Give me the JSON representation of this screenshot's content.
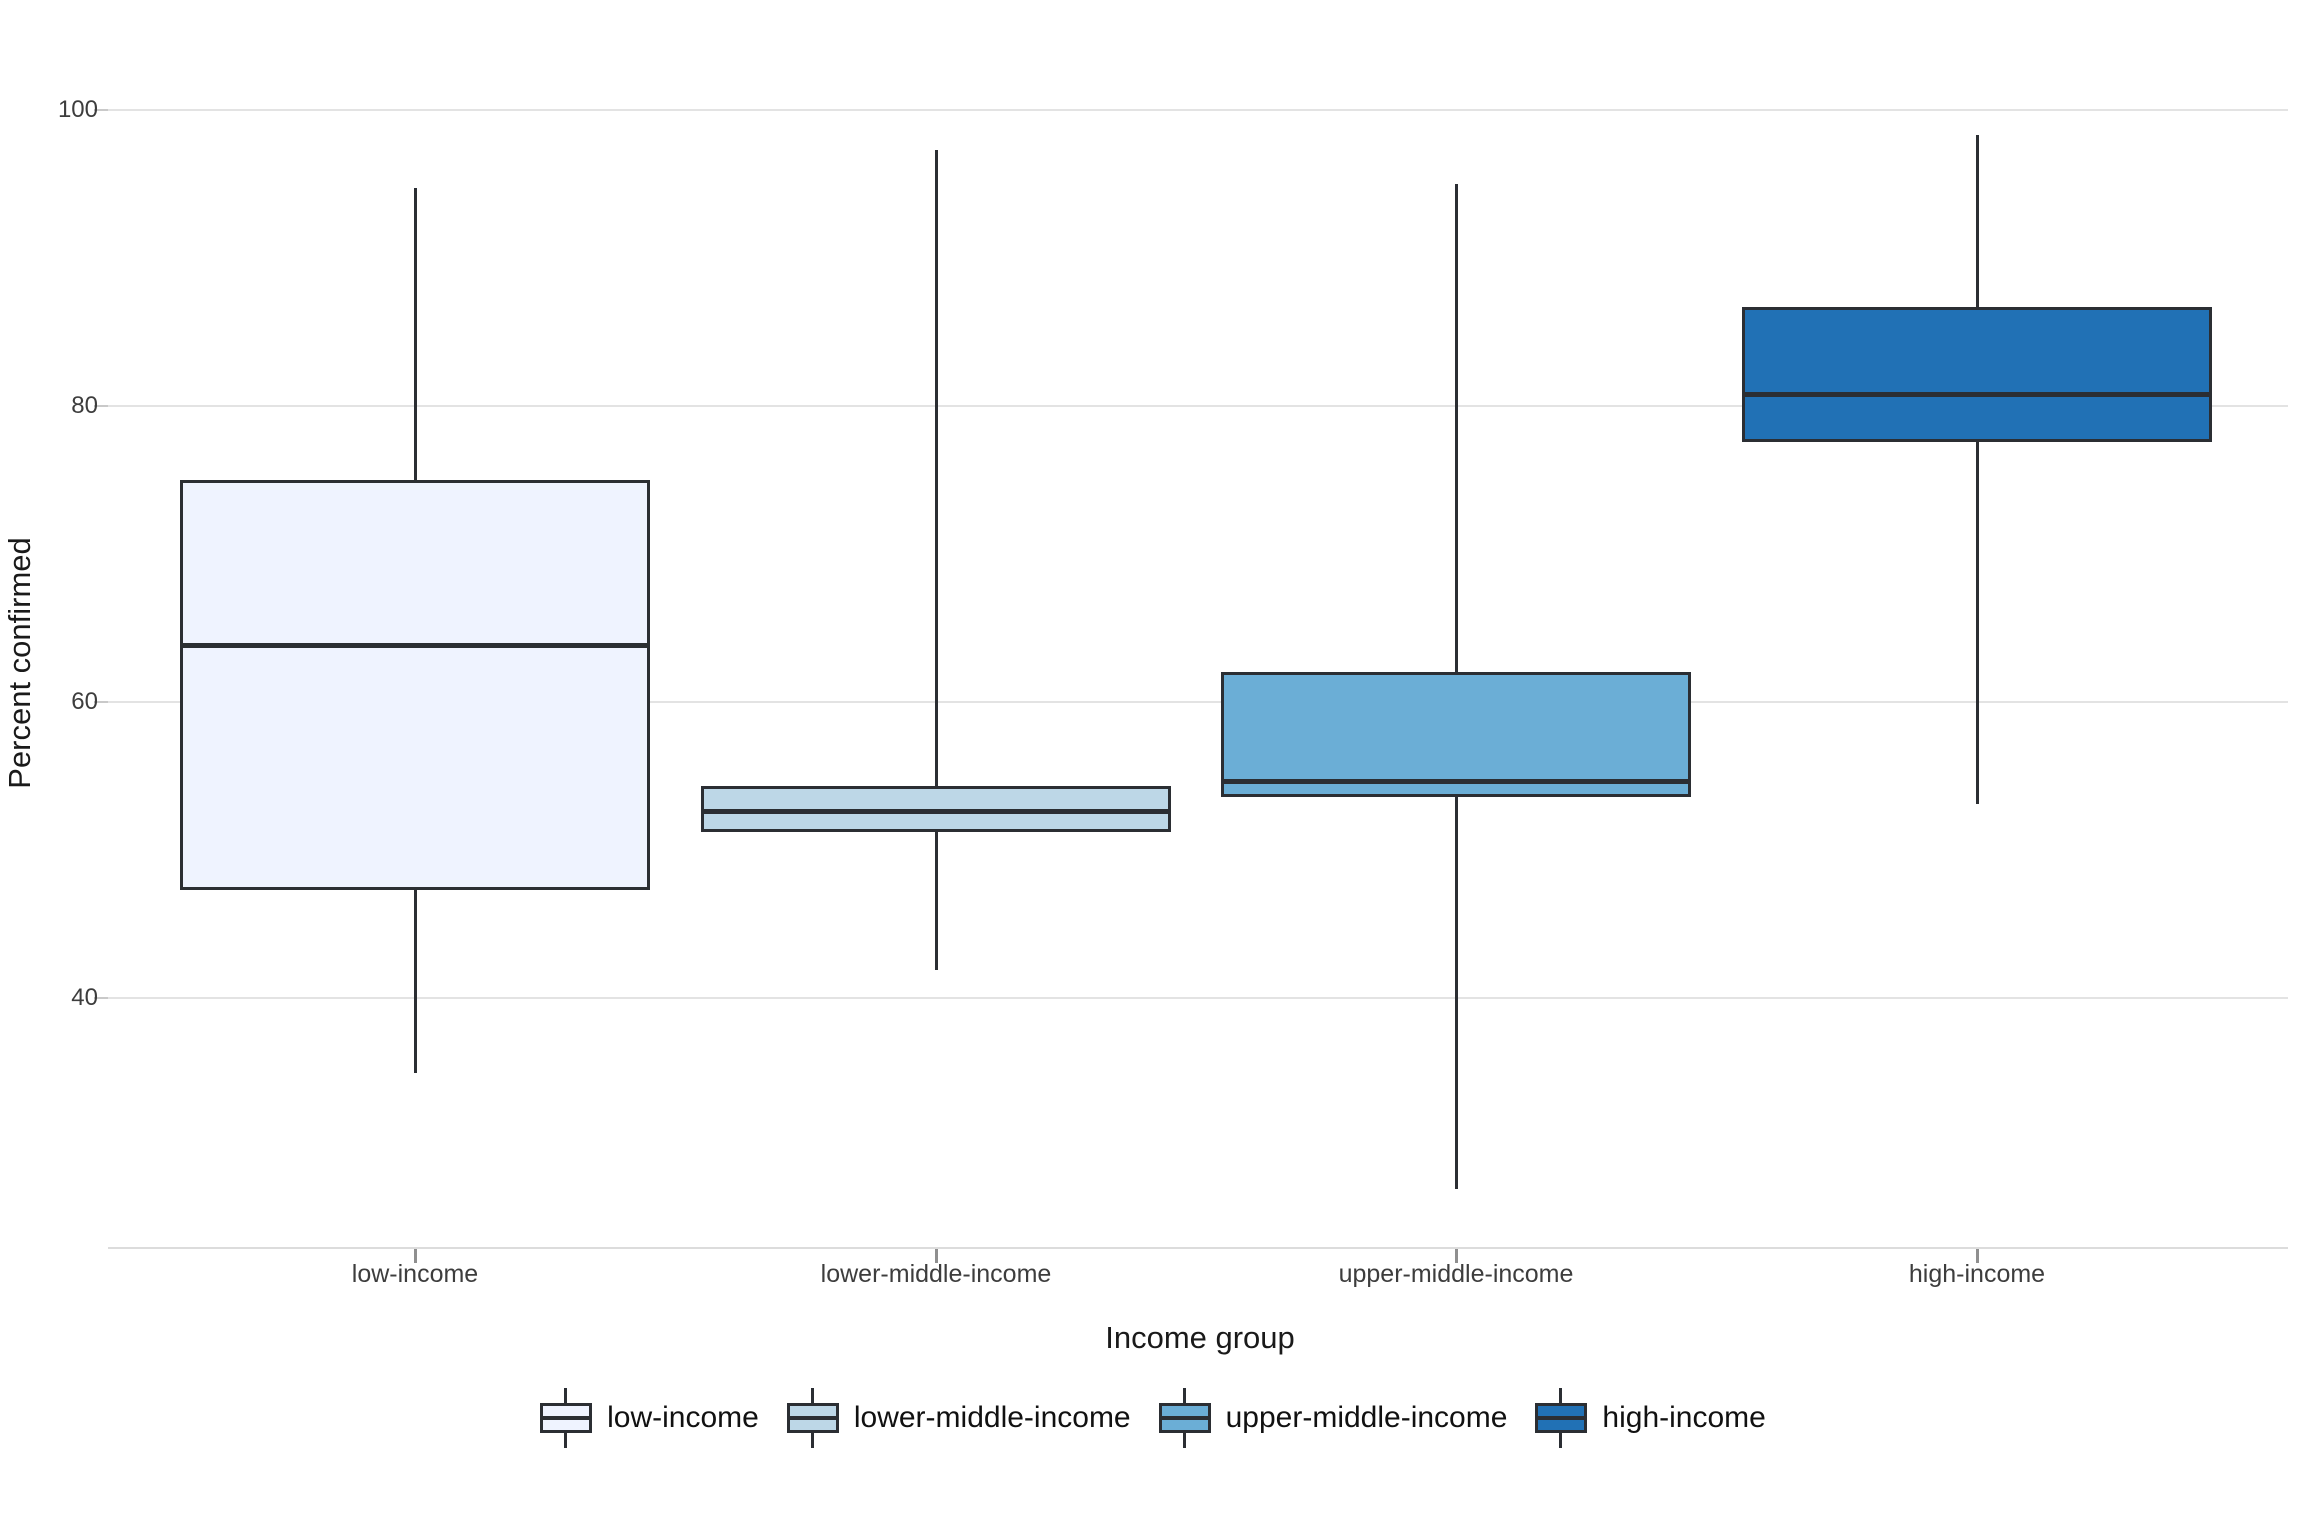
{
  "chart_data": {
    "type": "boxplot",
    "title": "",
    "xlabel": "Income group",
    "ylabel": "Percent confirmed",
    "categories": [
      "low-income",
      "lower-middle-income",
      "upper-middle-income",
      "high-income"
    ],
    "y_ticks": [
      100,
      80,
      60,
      40
    ],
    "y_tick_labels": [
      "100",
      "80",
      "60",
      "40"
    ],
    "ylim": [
      23,
      102
    ],
    "grid": "horizontal-only",
    "legend_position": "bottom",
    "line_color": "#2b2e33",
    "gridline_color": "#e3e3e3",
    "background_color": "#ffffff",
    "series": [
      {
        "name": "low-income",
        "color": "#EFF3FF",
        "whisker_low": 34.9,
        "q1": 47.3,
        "median": 63.8,
        "q3": 75.0,
        "whisker_high": 94.7
      },
      {
        "name": "lower-middle-income",
        "color": "#BDD7E7",
        "whisker_low": 41.9,
        "q1": 51.2,
        "median": 52.6,
        "q3": 54.3,
        "whisker_high": 97.3
      },
      {
        "name": "upper-middle-income",
        "color": "#6BAED6",
        "whisker_low": 27.1,
        "q1": 53.6,
        "median": 54.6,
        "q3": 62.0,
        "whisker_high": 95.0
      },
      {
        "name": "high-income",
        "color": "#2171B5",
        "whisker_low": 53.1,
        "q1": 77.6,
        "median": 80.8,
        "q3": 86.7,
        "whisker_high": 98.3
      }
    ]
  }
}
